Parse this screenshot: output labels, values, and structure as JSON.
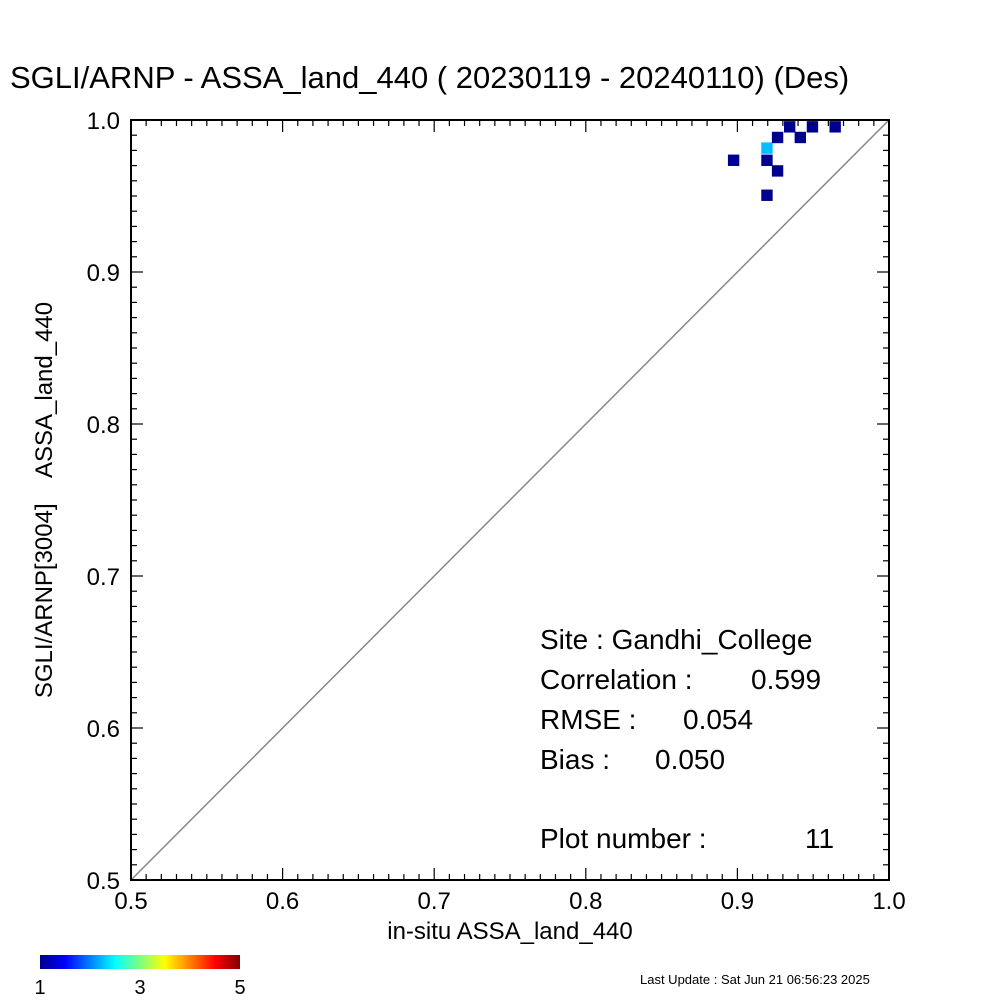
{
  "chart_data": {
    "type": "heatmap",
    "title": "SGLI/ARNP - ASSA_land_440 ( 20230119 - 20240110) (Des)",
    "xlabel": "in-situ ASSA_land_440",
    "ylabel": "SGLI/ARNP[3004]    ASSA_land_440",
    "xlim": [
      0.5,
      1.0
    ],
    "ylim": [
      0.5,
      1.0
    ],
    "x_ticks": [
      "0.5",
      "0.6",
      "0.7",
      "0.8",
      "0.9",
      "1.0"
    ],
    "y_ticks": [
      "0.5",
      "0.6",
      "0.7",
      "0.8",
      "0.9",
      "1.0"
    ],
    "grid": false,
    "reference_line": "1:1",
    "cell_size": 0.0075,
    "cells": [
      {
        "x": 0.8975,
        "y": 0.9735,
        "count": 1
      },
      {
        "x": 0.9195,
        "y": 0.9815,
        "count": 2
      },
      {
        "x": 0.9195,
        "y": 0.9735,
        "count": 1
      },
      {
        "x": 0.9195,
        "y": 0.9505,
        "count": 1
      },
      {
        "x": 0.9265,
        "y": 0.9885,
        "count": 1
      },
      {
        "x": 0.9265,
        "y": 0.9665,
        "count": 1
      },
      {
        "x": 0.9345,
        "y": 0.9955,
        "count": 1
      },
      {
        "x": 0.9415,
        "y": 0.9885,
        "count": 1
      },
      {
        "x": 0.9495,
        "y": 0.9955,
        "count": 1
      },
      {
        "x": 0.9645,
        "y": 0.9955,
        "count": 1
      }
    ],
    "colorbar": {
      "min": 1,
      "max": 5,
      "labels": [
        "1",
        "3",
        "5"
      ],
      "colormap": "jet"
    },
    "stats": {
      "site_label": "Site : Gandhi_College",
      "correlation_label": "Correlation :",
      "correlation": "0.599",
      "rmse_label": "RMSE :",
      "rmse": "0.054",
      "bias_label": "Bias :",
      "bias": "0.050",
      "plot_number_label": "Plot number :",
      "plot_number": "11"
    },
    "footer": "Last Update : Sat Jun 21 06:56:23 2025"
  },
  "colors": {
    "one_to_one_line": "#888888",
    "axis": "#000000",
    "background": "#ffffff"
  }
}
